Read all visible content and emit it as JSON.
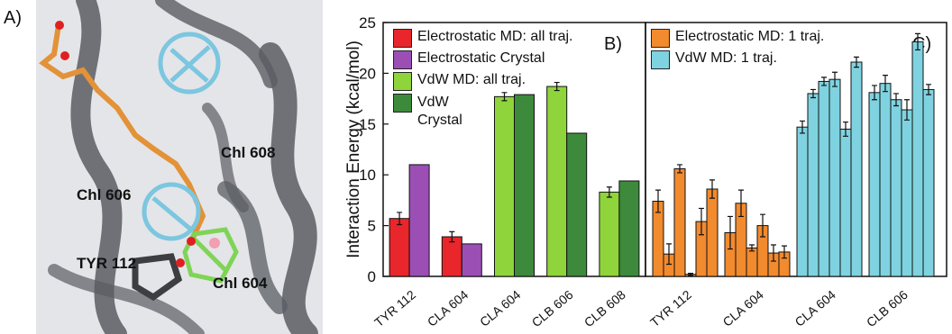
{
  "image": {
    "panel_label": "A)",
    "labels": [
      "Chl 608",
      "Chl 606",
      "TYR 112",
      "Chl 604"
    ]
  },
  "chart_data": [
    {
      "type": "bar",
      "panel_label": "B)",
      "ylabel": "Interaction Energy (kcal/mol)",
      "categories": [
        "TYR 112",
        "CLA 604",
        "CLA 604",
        "CLB 606",
        "CLB 608"
      ],
      "ylim": [
        0,
        25
      ],
      "yticks": [
        0,
        5,
        10,
        15,
        20,
        25
      ],
      "grid": false,
      "series": [
        {
          "name": "Electrostatic MD: all traj.",
          "color": "#e8262b",
          "values": [
            5.7,
            3.9,
            null,
            null,
            null
          ],
          "errors": [
            0.6,
            0.5,
            null,
            null,
            null
          ]
        },
        {
          "name": "Electrostatic Crystal",
          "color": "#9b4fb5",
          "values": [
            11.0,
            3.2,
            null,
            null,
            null
          ]
        },
        {
          "name": "VdW MD: all traj.",
          "color": "#8fd43b",
          "values": [
            null,
            null,
            17.7,
            18.7,
            8.3
          ],
          "errors": [
            null,
            null,
            0.4,
            0.4,
            0.5
          ]
        },
        {
          "name": "VdW Crystal",
          "color": "#3d8a3c",
          "values": [
            null,
            null,
            17.9,
            14.1,
            9.4
          ]
        }
      ]
    },
    {
      "type": "bar",
      "panel_label": "C)",
      "categories": [
        "TYR 112",
        "CLA 604",
        "CLA 604",
        "CLB 606"
      ],
      "ylim": [
        0,
        25
      ],
      "series": [
        {
          "name": "Electrostatic MD: 1 traj.",
          "color": "#f28a2e",
          "values": [
            [
              7.4,
              2.2,
              10.6,
              0.2,
              5.4,
              8.6
            ],
            [
              4.3,
              7.2,
              2.8,
              5.0,
              2.3,
              2.4
            ],
            null,
            null
          ],
          "errors": [
            [
              1.1,
              1.0,
              0.4,
              0.1,
              1.3,
              0.9
            ],
            [
              1.6,
              1.3,
              0.3,
              1.1,
              0.8,
              0.6
            ],
            null,
            null
          ]
        },
        {
          "name": "VdW MD: 1 traj.",
          "color": "#7fd3e0",
          "values": [
            null,
            null,
            [
              14.7,
              18.0,
              19.2,
              19.4,
              14.5,
              21.1
            ],
            [
              18.1,
              19.0,
              17.4,
              16.4,
              23.1,
              18.4
            ]
          ],
          "errors": [
            null,
            null,
            [
              0.6,
              0.4,
              0.4,
              0.7,
              0.7,
              0.5
            ],
            [
              0.7,
              0.8,
              0.6,
              1.0,
              0.8,
              0.5
            ]
          ]
        }
      ]
    }
  ]
}
